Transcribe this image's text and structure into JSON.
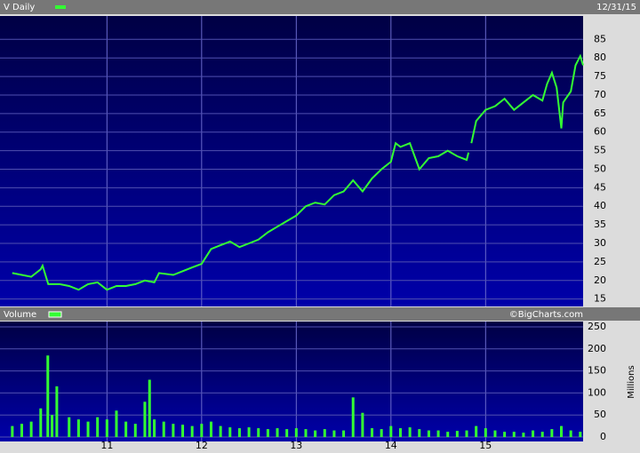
{
  "chart_data": [
    {
      "type": "line",
      "title": "V Daily",
      "date": "12/31/15",
      "color": "#33ff33",
      "grid": true,
      "xlim": [
        9.87,
        16.03
      ],
      "xticks": [
        11,
        12,
        13,
        14,
        15
      ],
      "ylim": [
        13,
        91.3
      ],
      "yticks": [
        85,
        80,
        75,
        70,
        65,
        60,
        55,
        50,
        45,
        40,
        35,
        30,
        25,
        20,
        15
      ],
      "series": [
        {
          "name": "V",
          "color": "#33ff33",
          "x": [
            10.0,
            10.1,
            10.2,
            10.3,
            10.32,
            10.38,
            10.5,
            10.6,
            10.7,
            10.8,
            10.9,
            11.0,
            11.1,
            11.2,
            11.3,
            11.4,
            11.5,
            11.55,
            11.7,
            11.8,
            11.9,
            12.0,
            12.1,
            12.2,
            12.3,
            12.4,
            12.5,
            12.6,
            12.7,
            12.8,
            12.9,
            13.0,
            13.1,
            13.2,
            13.3,
            13.4,
            13.5,
            13.6,
            13.7,
            13.8,
            13.9,
            14.0,
            14.05,
            14.1,
            14.2,
            14.3,
            14.4,
            14.5,
            14.6,
            14.7,
            14.8,
            14.82,
            14.83,
            14.85,
            14.9,
            15.0,
            15.1,
            15.2,
            15.3,
            15.4,
            15.5,
            15.6,
            15.65,
            15.7,
            15.75,
            15.8,
            15.82,
            15.9,
            15.95,
            16.0,
            16.03
          ],
          "values": [
            22,
            21.5,
            21,
            23,
            24,
            19,
            19,
            18.5,
            17.5,
            19,
            19.5,
            17.5,
            18.5,
            18.5,
            19,
            20,
            19.5,
            22,
            21.5,
            22.5,
            23.5,
            24.5,
            28.5,
            29.5,
            30.5,
            29,
            30,
            31,
            33,
            34.5,
            36,
            37.5,
            40,
            41,
            40.5,
            43,
            44,
            47,
            44,
            47.5,
            50,
            52,
            57,
            56,
            57,
            50,
            53,
            53.5,
            55,
            53.5,
            52.5,
            54.5,
            null,
            57,
            63,
            66,
            67,
            69,
            66,
            68,
            70,
            68.5,
            73,
            76,
            72,
            61,
            68,
            71,
            78,
            80.5,
            78
          ]
        }
      ]
    },
    {
      "type": "bar",
      "title": "Volume",
      "source": "©BigCharts.com",
      "y_label": "Millions",
      "color": "#33ff33",
      "grid": true,
      "xlim": [
        9.87,
        16.03
      ],
      "xticks": [
        11,
        12,
        13,
        14,
        15
      ],
      "ylim": [
        -10,
        262
      ],
      "yticks": [
        250,
        200,
        150,
        100,
        50,
        0
      ],
      "series": [
        {
          "name": "Volume",
          "color": "#33ff33",
          "x": [
            10.0,
            10.1,
            10.2,
            10.3,
            10.375,
            10.42,
            10.47,
            10.6,
            10.7,
            10.8,
            10.9,
            11.0,
            11.1,
            11.2,
            11.3,
            11.4,
            11.45,
            11.5,
            11.6,
            11.7,
            11.8,
            11.9,
            12.0,
            12.1,
            12.2,
            12.3,
            12.4,
            12.5,
            12.6,
            12.7,
            12.8,
            12.9,
            13.0,
            13.1,
            13.2,
            13.3,
            13.4,
            13.5,
            13.6,
            13.7,
            13.8,
            13.9,
            14.0,
            14.1,
            14.2,
            14.3,
            14.4,
            14.5,
            14.6,
            14.7,
            14.8,
            14.9,
            15.0,
            15.1,
            15.2,
            15.3,
            15.4,
            15.5,
            15.6,
            15.7,
            15.8,
            15.9,
            16.0
          ],
          "values": [
            25,
            30,
            35,
            65,
            185,
            50,
            115,
            45,
            40,
            35,
            45,
            40,
            60,
            35,
            30,
            80,
            130,
            40,
            35,
            30,
            28,
            25,
            30,
            35,
            25,
            22,
            20,
            22,
            20,
            18,
            20,
            18,
            20,
            18,
            15,
            18,
            15,
            15,
            90,
            55,
            20,
            18,
            25,
            20,
            22,
            18,
            15,
            15,
            12,
            14,
            15,
            25,
            20,
            15,
            12,
            12,
            10,
            15,
            12,
            18,
            25,
            15,
            12
          ]
        }
      ]
    }
  ]
}
